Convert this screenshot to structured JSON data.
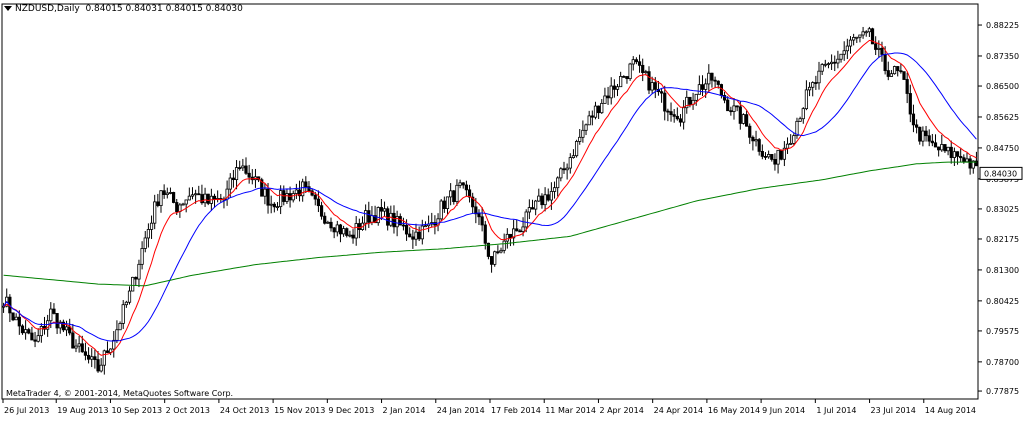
{
  "header": {
    "symbol": "NZDUSD,Daily",
    "ohlc": "0.84015 0.84031 0.84015 0.84030"
  },
  "footer": {
    "copyright": "MetaTrader 4, © 2001-2014, MetaQuotes Software Corp."
  },
  "colors": {
    "background": "#ffffff",
    "candle": "#000000",
    "ma_fast": "#ff0000",
    "ma_mid": "#0000ff",
    "ma_slow": "#008000"
  },
  "chart_data": {
    "type": "candlestick",
    "title": "NZDUSD,Daily",
    "price_axis": {
      "ticks": [
        "0.88225",
        "0.87350",
        "0.86500",
        "0.85625",
        "0.84750",
        "0.83875",
        "0.83025",
        "0.82175",
        "0.81300",
        "0.80425",
        "0.79575",
        "0.78700",
        "0.77875"
      ],
      "current_price": "0.84030",
      "ylim": [
        0.7765,
        0.8865
      ]
    },
    "time_axis": {
      "ticks": [
        "26 Jul 2013",
        "19 Aug 2013",
        "10 Sep 2013",
        "2 Oct 2013",
        "24 Oct 2013",
        "15 Nov 2013",
        "9 Dec 2013",
        "2 Jan 2014",
        "24 Jan 2014",
        "17 Feb 2014",
        "11 Mar 2014",
        "2 Apr 2014",
        "24 Apr 2014",
        "16 May 2014",
        "9 Jun 2014",
        "1 Jul 2014",
        "23 Jul 2014",
        "14 Aug 2014"
      ]
    },
    "close_anchors": [
      [
        0,
        0.805
      ],
      [
        5,
        0.797
      ],
      [
        10,
        0.792
      ],
      [
        15,
        0.801
      ],
      [
        20,
        0.795
      ],
      [
        25,
        0.789
      ],
      [
        30,
        0.785
      ],
      [
        35,
        0.794
      ],
      [
        40,
        0.806
      ],
      [
        45,
        0.822
      ],
      [
        50,
        0.836
      ],
      [
        55,
        0.831
      ],
      [
        60,
        0.835
      ],
      [
        65,
        0.832
      ],
      [
        70,
        0.833
      ],
      [
        75,
        0.843
      ],
      [
        80,
        0.838
      ],
      [
        85,
        0.832
      ],
      [
        90,
        0.834
      ],
      [
        95,
        0.836
      ],
      [
        100,
        0.83
      ],
      [
        105,
        0.826
      ],
      [
        110,
        0.822
      ],
      [
        115,
        0.828
      ],
      [
        120,
        0.829
      ],
      [
        125,
        0.826
      ],
      [
        130,
        0.823
      ],
      [
        135,
        0.825
      ],
      [
        140,
        0.832
      ],
      [
        145,
        0.836
      ],
      [
        150,
        0.83
      ],
      [
        155,
        0.815
      ],
      [
        160,
        0.822
      ],
      [
        165,
        0.826
      ],
      [
        170,
        0.832
      ],
      [
        175,
        0.836
      ],
      [
        180,
        0.845
      ],
      [
        185,
        0.854
      ],
      [
        190,
        0.861
      ],
      [
        195,
        0.866
      ],
      [
        200,
        0.871
      ],
      [
        205,
        0.866
      ],
      [
        210,
        0.86
      ],
      [
        215,
        0.857
      ],
      [
        220,
        0.864
      ],
      [
        225,
        0.867
      ],
      [
        230,
        0.86
      ],
      [
        235,
        0.855
      ],
      [
        240,
        0.848
      ],
      [
        245,
        0.843
      ],
      [
        250,
        0.851
      ],
      [
        255,
        0.862
      ],
      [
        260,
        0.869
      ],
      [
        265,
        0.873
      ],
      [
        270,
        0.878
      ],
      [
        275,
        0.879
      ],
      [
        280,
        0.87
      ],
      [
        285,
        0.868
      ],
      [
        290,
        0.852
      ],
      [
        295,
        0.848
      ],
      [
        300,
        0.846
      ],
      [
        305,
        0.845
      ],
      [
        309,
        0.841
      ]
    ],
    "ma_slow_anchors": [
      [
        0,
        0.8115
      ],
      [
        30,
        0.809
      ],
      [
        45,
        0.8085
      ],
      [
        60,
        0.8115
      ],
      [
        80,
        0.8145
      ],
      [
        100,
        0.8165
      ],
      [
        120,
        0.818
      ],
      [
        140,
        0.819
      ],
      [
        160,
        0.8205
      ],
      [
        180,
        0.8225
      ],
      [
        200,
        0.8275
      ],
      [
        220,
        0.8325
      ],
      [
        240,
        0.836
      ],
      [
        260,
        0.8385
      ],
      [
        275,
        0.841
      ],
      [
        290,
        0.843
      ],
      [
        300,
        0.8435
      ],
      [
        309,
        0.8435
      ]
    ],
    "candle_count": 310
  }
}
